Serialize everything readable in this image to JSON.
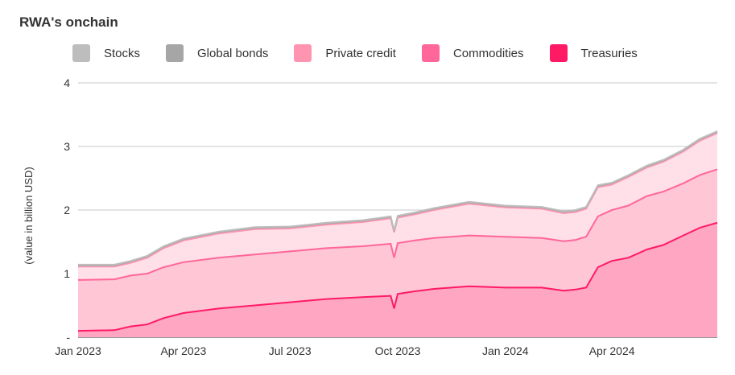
{
  "chart_data": {
    "type": "area",
    "stacked": true,
    "title": "RWA's onchain",
    "ylabel": "(value in billion USD)",
    "xlabel": "",
    "ylim": [
      0,
      4
    ],
    "y_ticks": [
      {
        "value": 0,
        "label": "-"
      },
      {
        "value": 1,
        "label": "1"
      },
      {
        "value": 2,
        "label": "2"
      },
      {
        "value": 3,
        "label": "3"
      },
      {
        "value": 4,
        "label": "4"
      }
    ],
    "xlim": [
      "2023-01-01",
      "2024-06-30"
    ],
    "x_ticks": [
      {
        "date": "2023-01-01",
        "label": "Jan 2023"
      },
      {
        "date": "2023-04-01",
        "label": "Apr 2023"
      },
      {
        "date": "2023-07-01",
        "label": "Jul 2023"
      },
      {
        "date": "2023-10-01",
        "label": "Oct 2023"
      },
      {
        "date": "2024-01-01",
        "label": "Jan 2024"
      },
      {
        "date": "2024-04-01",
        "label": "Apr 2024"
      }
    ],
    "grid": true,
    "legend_position": "top",
    "x": [
      "2023-01-01",
      "2023-02-01",
      "2023-02-15",
      "2023-03-01",
      "2023-03-15",
      "2023-04-01",
      "2023-05-01",
      "2023-06-01",
      "2023-07-01",
      "2023-08-01",
      "2023-09-01",
      "2023-09-25",
      "2023-09-28",
      "2023-10-01",
      "2023-10-15",
      "2023-11-01",
      "2023-12-01",
      "2024-01-01",
      "2024-02-01",
      "2024-02-20",
      "2024-03-01",
      "2024-03-10",
      "2024-03-20",
      "2024-04-01",
      "2024-04-15",
      "2024-05-01",
      "2024-05-15",
      "2024-06-01",
      "2024-06-15",
      "2024-06-30"
    ],
    "series": [
      {
        "name": "Treasuries",
        "color": "#ff1a66",
        "fill": "#ffa6c2",
        "values": [
          0.1,
          0.11,
          0.17,
          0.2,
          0.3,
          0.38,
          0.45,
          0.5,
          0.55,
          0.6,
          0.63,
          0.65,
          0.45,
          0.68,
          0.72,
          0.76,
          0.8,
          0.78,
          0.78,
          0.73,
          0.75,
          0.78,
          1.1,
          1.2,
          1.25,
          1.38,
          1.45,
          1.6,
          1.72,
          1.8
        ]
      },
      {
        "name": "Commodities",
        "color": "#ff6699",
        "fill": "#ffc6d6",
        "values": [
          0.8,
          0.8,
          0.8,
          0.8,
          0.8,
          0.8,
          0.8,
          0.8,
          0.8,
          0.8,
          0.8,
          0.82,
          0.8,
          0.8,
          0.8,
          0.8,
          0.8,
          0.8,
          0.78,
          0.78,
          0.78,
          0.8,
          0.8,
          0.8,
          0.82,
          0.84,
          0.84,
          0.82,
          0.83,
          0.84
        ]
      },
      {
        "name": "Private credit",
        "color": "#ff94b0",
        "fill": "#ffe0e9",
        "values": [
          0.21,
          0.2,
          0.2,
          0.25,
          0.3,
          0.34,
          0.38,
          0.4,
          0.36,
          0.37,
          0.38,
          0.4,
          0.4,
          0.4,
          0.41,
          0.44,
          0.5,
          0.46,
          0.46,
          0.44,
          0.44,
          0.44,
          0.46,
          0.4,
          0.45,
          0.45,
          0.47,
          0.5,
          0.54,
          0.57
        ]
      },
      {
        "name": "Global bonds",
        "color": "#a6a6a6",
        "fill": "#f2dbe3",
        "values": [
          0.02,
          0.02,
          0.02,
          0.02,
          0.02,
          0.02,
          0.02,
          0.02,
          0.02,
          0.02,
          0.02,
          0.02,
          0.02,
          0.02,
          0.02,
          0.02,
          0.02,
          0.02,
          0.02,
          0.02,
          0.02,
          0.02,
          0.02,
          0.02,
          0.02,
          0.02,
          0.02,
          0.02,
          0.02,
          0.02
        ]
      },
      {
        "name": "Stocks",
        "color": "#bdbdbd",
        "fill": "#e6e6e6",
        "values": [
          0.01,
          0.01,
          0.01,
          0.01,
          0.01,
          0.01,
          0.01,
          0.01,
          0.01,
          0.01,
          0.01,
          0.01,
          0.01,
          0.01,
          0.01,
          0.01,
          0.01,
          0.01,
          0.01,
          0.01,
          0.01,
          0.01,
          0.01,
          0.01,
          0.01,
          0.01,
          0.01,
          0.01,
          0.01,
          0.01
        ]
      }
    ]
  },
  "legend": [
    {
      "label": "Stocks",
      "color": "#bdbdbd"
    },
    {
      "label": "Global bonds",
      "color": "#a6a6a6"
    },
    {
      "label": "Private credit",
      "color": "#ff94b0"
    },
    {
      "label": "Commodities",
      "color": "#ff6699"
    },
    {
      "label": "Treasuries",
      "color": "#ff1a66"
    }
  ]
}
